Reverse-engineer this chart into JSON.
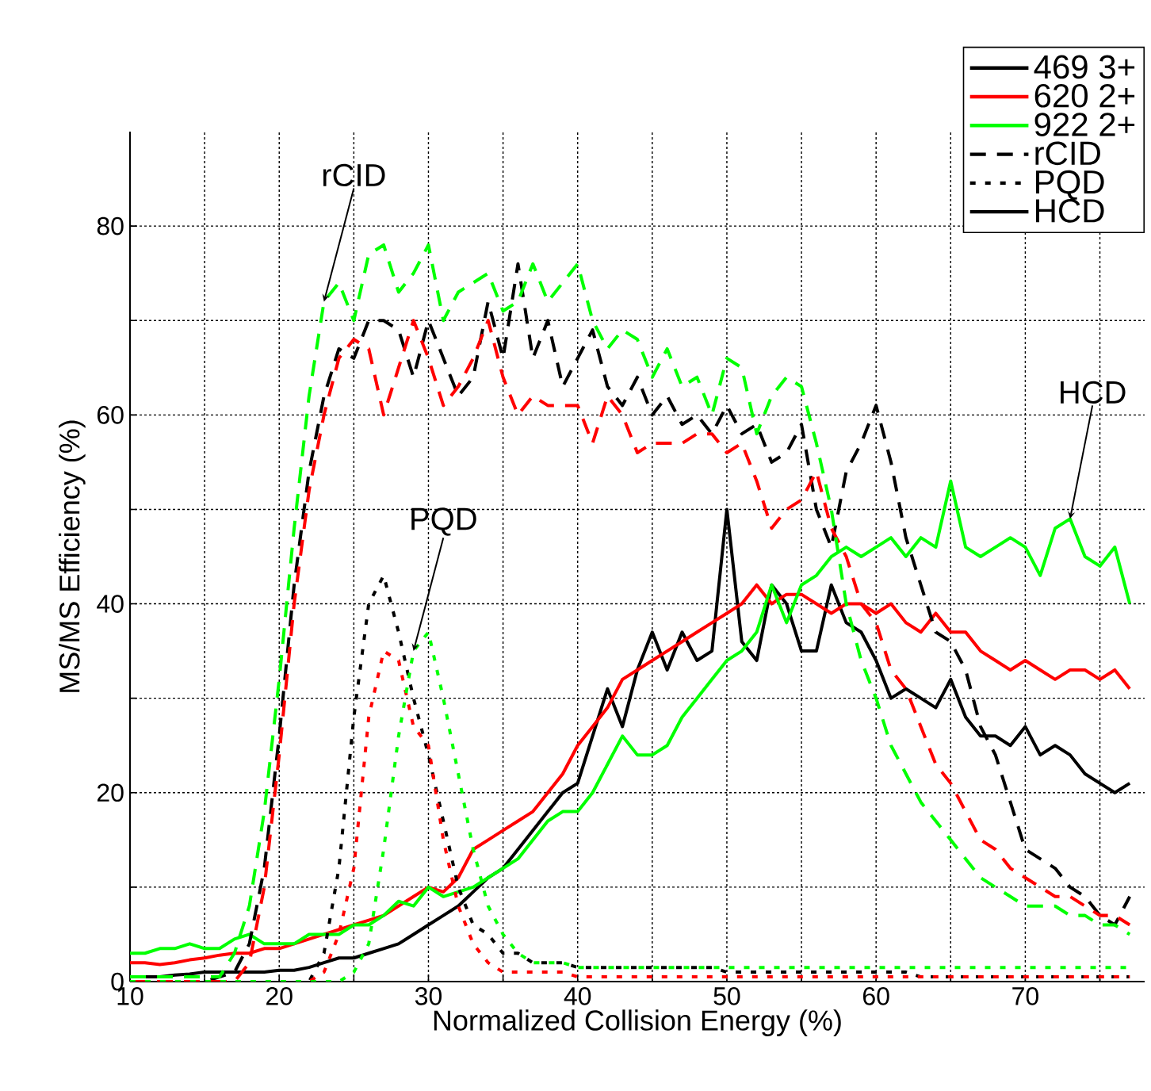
{
  "chart_data": {
    "type": "line",
    "xlabel": "Normalized Collision Energy (%)",
    "ylabel": "MS/MS Efficiency (%)",
    "xlim": [
      10,
      78
    ],
    "ylim": [
      0,
      90
    ],
    "xticks": [
      10,
      {
        "value": 15,
        "label": null
      },
      20,
      {
        "value": 25,
        "label": null
      },
      30,
      {
        "value": 35,
        "label": null
      },
      40,
      {
        "value": 45,
        "label": null
      },
      50,
      {
        "value": 55,
        "label": null
      },
      60,
      {
        "value": 65,
        "label": null
      },
      70,
      {
        "value": 75,
        "label": null
      }
    ],
    "yticks": [
      0,
      {
        "value": 10,
        "label": null
      },
      20,
      {
        "value": 30,
        "label": null
      },
      40,
      {
        "value": 50,
        "label": null
      },
      60,
      {
        "value": 70,
        "label": null
      },
      80
    ],
    "grid": true,
    "legend": "top right",
    "x": [
      10,
      11,
      12,
      13,
      14,
      15,
      16,
      17,
      18,
      19,
      20,
      21,
      22,
      23,
      24,
      25,
      26,
      27,
      28,
      29,
      30,
      31,
      32,
      33,
      34,
      35,
      36,
      37,
      38,
      39,
      40,
      41,
      42,
      43,
      44,
      45,
      46,
      47,
      48,
      49,
      50,
      51,
      52,
      53,
      54,
      55,
      56,
      57,
      58,
      59,
      60,
      61,
      62,
      63,
      64,
      65,
      66,
      67,
      68,
      69,
      70,
      71,
      72,
      73,
      74,
      75,
      76,
      77
    ],
    "series": [
      {
        "name": "469 3+",
        "color": "#000000",
        "line_style": "solid",
        "values": [
          0.5,
          0.5,
          0.5,
          0.7,
          0.8,
          1,
          1,
          1,
          1,
          1,
          1.2,
          1.2,
          1.5,
          2,
          2.5,
          2.5,
          3,
          3.5,
          4,
          5,
          6,
          7,
          8,
          9.5,
          11,
          12,
          14,
          16,
          18,
          20,
          21,
          26,
          31,
          27,
          33,
          37,
          33,
          37,
          34,
          35,
          50,
          36,
          34,
          42,
          40,
          35,
          35,
          42,
          38,
          37,
          34,
          30,
          31,
          30,
          29,
          32,
          28,
          26,
          26,
          25,
          27,
          24,
          25,
          24,
          22,
          21,
          20,
          21
        ]
      },
      {
        "name": "620 2+",
        "color": "#ff0000",
        "line_style": "solid",
        "values": [
          2,
          2,
          1.8,
          2,
          2.3,
          2.5,
          2.8,
          3,
          3,
          3.5,
          3.5,
          4,
          4.5,
          5,
          5.5,
          6,
          6.5,
          7,
          8,
          9,
          10,
          9.5,
          11,
          14,
          15,
          16,
          17,
          18,
          20,
          22,
          25,
          27,
          29,
          32,
          33,
          34,
          35,
          36,
          37,
          38,
          39,
          40,
          42,
          40,
          41,
          41,
          40,
          39,
          40,
          40,
          39,
          40,
          38,
          37,
          39,
          37,
          37,
          35,
          34,
          33,
          34,
          33,
          32,
          33,
          33,
          32,
          33,
          31
        ]
      },
      {
        "name": "922 2+",
        "color": "#00ff00",
        "line_style": "solid",
        "values": [
          3,
          3,
          3.5,
          3.5,
          4,
          3.5,
          3.5,
          4.5,
          5,
          4,
          4,
          4,
          5,
          5,
          5,
          6,
          6,
          7,
          8.5,
          8,
          10,
          9,
          9.5,
          10,
          11,
          12,
          13,
          15,
          17,
          18,
          18,
          20,
          23,
          26,
          24,
          24,
          25,
          28,
          30,
          32,
          34,
          35,
          37,
          42,
          38,
          42,
          43,
          45,
          46,
          45,
          46,
          47,
          45,
          47,
          46,
          53,
          46,
          45,
          46,
          47,
          46,
          43,
          48,
          49,
          45,
          44,
          46,
          40
        ]
      },
      {
        "name": "rCID",
        "color": "#000000",
        "line_style": "dashed",
        "values": [
          0,
          0,
          0,
          0,
          0,
          0,
          0.5,
          1,
          4,
          12,
          26,
          42,
          54,
          62,
          67,
          66,
          70,
          70,
          69,
          64,
          70,
          66,
          62,
          64,
          72,
          66,
          76,
          66,
          70,
          63,
          66,
          69,
          63,
          61,
          64,
          60,
          62,
          59,
          60,
          58,
          61,
          58,
          59,
          55,
          56,
          59,
          50,
          46,
          54,
          57,
          61,
          55,
          47,
          42,
          37,
          36,
          33,
          27,
          24,
          19,
          14,
          13,
          12,
          10,
          9,
          7,
          6,
          9
        ]
      },
      {
        "name": "PQD",
        "color": "#000000",
        "line_style": "dotted",
        "values": [
          0,
          0,
          0,
          0,
          0,
          0,
          0,
          0,
          0,
          0,
          0,
          0,
          0,
          3,
          12,
          28,
          40,
          43,
          37,
          30,
          24,
          17,
          10,
          6,
          5,
          3,
          3,
          2,
          2,
          2,
          1.5,
          1.5,
          1.5,
          1.5,
          1.5,
          1.5,
          1.5,
          1.5,
          1.5,
          1.5,
          1,
          1,
          1,
          1,
          1,
          1,
          1,
          1,
          1,
          1,
          1,
          1,
          1,
          0.5,
          0.5,
          0.5,
          0.5,
          0.5,
          0.5,
          0.5,
          0.5,
          0.5,
          0.5,
          0.5,
          0.5,
          0.5,
          0.5,
          0.5
        ]
      },
      {
        "color": "#ff0000",
        "line_style": "dashed",
        "values": [
          0,
          0,
          0,
          0,
          0,
          0,
          0,
          0,
          2,
          10,
          24,
          40,
          52,
          60,
          66,
          68,
          67,
          60,
          65,
          70,
          66,
          61,
          63,
          66,
          70,
          64,
          60,
          62,
          61,
          61,
          61,
          57,
          62,
          60,
          56,
          57,
          57,
          57,
          58,
          58,
          56,
          57,
          53,
          48,
          50,
          51,
          54,
          48,
          45,
          40,
          38,
          33,
          31,
          27,
          23,
          21,
          18,
          15,
          14,
          12,
          11,
          10,
          9,
          9,
          8,
          7,
          7,
          6
        ]
      },
      {
        "color": "#00ff00",
        "line_style": "dashed",
        "values": [
          0.5,
          0.5,
          0.5,
          0.5,
          0.5,
          0.5,
          0.5,
          3,
          8,
          18,
          32,
          48,
          62,
          72,
          74,
          70,
          77,
          78,
          73,
          75,
          78,
          70,
          73,
          74,
          75,
          71,
          72,
          76,
          72,
          74,
          76,
          70,
          67,
          69,
          68,
          64,
          67,
          63,
          64,
          60,
          66,
          65,
          58,
          62,
          64,
          63,
          57,
          50,
          40,
          34,
          30,
          25,
          22,
          19,
          17,
          15,
          13,
          11,
          10,
          9,
          8,
          8,
          8,
          7,
          7,
          6,
          6,
          5
        ]
      },
      {
        "color": "#ff0000",
        "line_style": "dotted",
        "values": [
          0,
          0,
          0,
          0,
          0,
          0,
          0,
          0,
          0,
          0,
          0,
          0,
          0,
          1,
          5,
          12,
          28,
          35,
          34,
          27,
          25,
          15,
          8,
          4,
          2,
          1,
          1,
          1,
          1,
          1,
          0.5,
          0.5,
          0.5,
          0.5,
          0.5,
          0.5,
          0.5,
          0.5,
          0.5,
          0.5,
          0.5,
          0.5,
          0.5,
          0.5,
          0.5,
          0.5,
          0.5,
          0.5,
          0.5,
          0.5,
          0.5,
          0.5,
          0.5,
          0.5,
          0.5,
          0.5,
          0.5,
          0.5,
          0.5,
          0.5,
          0.5,
          0.5,
          0.5,
          0.5,
          0.5,
          0.5,
          0.5,
          0.5
        ]
      },
      {
        "color": "#00ff00",
        "line_style": "dotted",
        "values": [
          0,
          0,
          0,
          0,
          0,
          0,
          0,
          0,
          0,
          0,
          0,
          0,
          0,
          0,
          0,
          1,
          4,
          14,
          26,
          35,
          37,
          30,
          22,
          14,
          8,
          5,
          3,
          2,
          2,
          2,
          1.5,
          1.5,
          1.5,
          1.5,
          1.5,
          1.5,
          1.5,
          1.5,
          1.5,
          1.5,
          1.5,
          1.5,
          1.5,
          1.5,
          1.5,
          1.5,
          1.5,
          1.5,
          1.5,
          1.5,
          1.5,
          1.5,
          1.5,
          1.5,
          1.5,
          1.5,
          1.5,
          1.5,
          1.5,
          1.5,
          1.5,
          1.5,
          1.5,
          1.5,
          1.5,
          1.5,
          1.5,
          1.5
        ]
      }
    ],
    "annotations": [
      "HCD",
      {
        "text": "rCID",
        "x": 23,
        "y": 72
      },
      {
        "text": "PQD",
        "x": 29,
        "y": 35
      },
      {
        "text": "HCD",
        "x": 73,
        "y": 49
      }
    ]
  }
}
